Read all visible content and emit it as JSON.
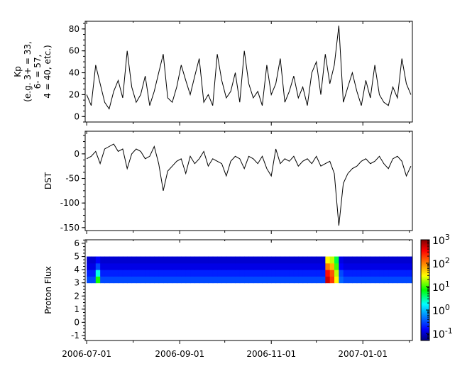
{
  "chart_data": [
    {
      "type": "line",
      "ylabel_lines": [
        "Kp",
        "(e.g. 3+ = 33,",
        "6- = 57,",
        "4 = 40, etc.)"
      ],
      "ylim": [
        -5,
        87
      ],
      "yticks": [
        "0",
        "20",
        "40",
        "60",
        "80"
      ],
      "ytick_values": [
        0,
        20,
        40,
        60,
        80
      ],
      "series": [
        {
          "values": [
            20,
            10,
            47,
            30,
            13,
            7,
            23,
            33,
            17,
            60,
            27,
            13,
            20,
            37,
            10,
            23,
            40,
            57,
            17,
            13,
            27,
            47,
            33,
            20,
            37,
            53,
            13,
            20,
            10,
            57,
            33,
            17,
            23,
            40,
            13,
            60,
            30,
            17,
            23,
            10,
            47,
            20,
            30,
            53,
            13,
            23,
            37,
            17,
            27,
            10,
            40,
            50,
            20,
            57,
            30,
            47,
            83,
            13,
            27,
            40,
            23,
            10,
            33,
            17,
            47,
            20,
            13,
            10,
            27,
            17,
            53,
            30,
            20
          ]
        }
      ]
    },
    {
      "type": "line",
      "ylabel": "DST",
      "ylim": [
        -156,
        46
      ],
      "yticks": [
        "0",
        "-50",
        "-100",
        "-150"
      ],
      "ytick_values": [
        0,
        -50,
        -100,
        -150
      ],
      "series": [
        {
          "values": [
            -10,
            -5,
            5,
            -20,
            10,
            15,
            20,
            5,
            10,
            -30,
            0,
            10,
            5,
            -10,
            -5,
            15,
            -20,
            -75,
            -35,
            -25,
            -15,
            -10,
            -40,
            -5,
            -20,
            -10,
            5,
            -25,
            -10,
            -15,
            -20,
            -45,
            -15,
            -5,
            -10,
            -30,
            -5,
            -10,
            -20,
            -5,
            -30,
            -45,
            10,
            -20,
            -10,
            -15,
            -5,
            -25,
            -15,
            -10,
            -20,
            -5,
            -25,
            -20,
            -15,
            -40,
            -146,
            -60,
            -40,
            -30,
            -25,
            -15,
            -10,
            -20,
            -15,
            -5,
            -20,
            -30,
            -10,
            -5,
            -15,
            -45,
            -25
          ]
        }
      ]
    },
    {
      "type": "heatmap",
      "ylabel": "Proton Flux",
      "ylim": [
        -1.38,
        6.27
      ],
      "yticks": [
        "-1",
        "0",
        "1",
        "2",
        "3",
        "4",
        "5",
        "6"
      ],
      "ytick_values": [
        -1,
        0,
        1,
        2,
        3,
        4,
        5,
        6
      ],
      "y_bins": [
        3.0,
        3.5,
        4.0,
        4.5
      ],
      "y_bin_width": 0.5,
      "colorscale": "jet",
      "color_scale": "log",
      "clim": [
        0.05,
        1000
      ],
      "colorbar_ticks": [
        {
          "base": "10",
          "exp": "3",
          "value": 1000
        },
        {
          "base": "10",
          "exp": "2",
          "value": 100
        },
        {
          "base": "10",
          "exp": "1",
          "value": 10
        },
        {
          "base": "10",
          "exp": "0",
          "value": 1
        },
        {
          "base": "10",
          "exp": "-1",
          "value": 0.1
        }
      ],
      "z": [
        [
          0.3,
          0.3,
          8,
          0.3,
          0.3,
          0.3,
          0.3,
          0.3,
          0.3,
          0.3,
          0.3,
          0.3,
          0.3,
          0.3,
          0.3,
          0.3,
          0.3,
          0.3,
          0.3,
          0.3,
          0.3,
          0.3,
          0.3,
          0.3,
          0.3,
          0.3,
          0.3,
          0.3,
          0.3,
          0.3,
          0.3,
          0.3,
          0.3,
          0.3,
          0.3,
          0.3,
          0.3,
          0.3,
          0.3,
          0.3,
          0.3,
          0.3,
          0.3,
          0.3,
          0.3,
          0.3,
          0.3,
          0.3,
          0.3,
          0.3,
          0.3,
          0.3,
          0.3,
          500,
          200,
          30,
          0.4,
          0.3,
          0.3,
          0.3,
          0.3,
          0.3,
          0.3,
          0.3,
          0.3,
          0.3,
          0.3,
          0.3,
          0.3,
          0.3,
          0.3,
          0.3,
          0.3
        ],
        [
          0.2,
          0.2,
          2,
          0.2,
          0.2,
          0.2,
          0.2,
          0.2,
          0.2,
          0.2,
          0.2,
          0.2,
          0.2,
          0.2,
          0.2,
          0.2,
          0.2,
          0.2,
          0.2,
          0.2,
          0.2,
          0.2,
          0.2,
          0.2,
          0.2,
          0.2,
          0.2,
          0.2,
          0.2,
          0.2,
          0.2,
          0.2,
          0.2,
          0.2,
          0.2,
          0.2,
          0.2,
          0.2,
          0.2,
          0.2,
          0.2,
          0.2,
          0.2,
          0.2,
          0.2,
          0.2,
          0.2,
          0.2,
          0.2,
          0.2,
          0.2,
          0.2,
          0.2,
          300,
          150,
          20,
          0.3,
          0.2,
          0.2,
          0.2,
          0.2,
          0.2,
          0.2,
          0.2,
          0.2,
          0.2,
          0.2,
          0.2,
          0.2,
          0.2,
          0.2,
          0.2,
          0.2
        ],
        [
          0.12,
          0.12,
          0.3,
          0.12,
          0.12,
          0.12,
          0.12,
          0.12,
          0.12,
          0.12,
          0.12,
          0.12,
          0.12,
          0.12,
          0.12,
          0.12,
          0.12,
          0.12,
          0.12,
          0.12,
          0.12,
          0.12,
          0.12,
          0.12,
          0.12,
          0.12,
          0.12,
          0.12,
          0.12,
          0.12,
          0.12,
          0.12,
          0.12,
          0.12,
          0.12,
          0.12,
          0.12,
          0.12,
          0.12,
          0.12,
          0.12,
          0.12,
          0.12,
          0.12,
          0.12,
          0.12,
          0.12,
          0.12,
          0.12,
          0.12,
          0.12,
          0.12,
          0.12,
          100,
          60,
          10,
          0.15,
          0.12,
          0.12,
          0.12,
          0.12,
          0.12,
          0.12,
          0.12,
          0.12,
          0.12,
          0.12,
          0.12,
          0.12,
          0.12,
          0.12,
          0.12,
          0.12
        ],
        [
          0.1,
          0.1,
          0.15,
          0.1,
          0.1,
          0.1,
          0.1,
          0.1,
          0.1,
          0.1,
          0.1,
          0.1,
          0.1,
          0.1,
          0.1,
          0.1,
          0.1,
          0.1,
          0.1,
          0.1,
          0.1,
          0.1,
          0.1,
          0.1,
          0.1,
          0.1,
          0.1,
          0.1,
          0.1,
          0.1,
          0.1,
          0.1,
          0.1,
          0.1,
          0.1,
          0.1,
          0.1,
          0.1,
          0.1,
          0.1,
          0.1,
          0.1,
          0.1,
          0.1,
          0.1,
          0.1,
          0.1,
          0.1,
          0.1,
          0.1,
          0.1,
          0.1,
          0.1,
          30,
          20,
          5,
          0.12,
          0.1,
          0.1,
          0.1,
          0.1,
          0.1,
          0.1,
          0.1,
          0.1,
          0.1,
          0.1,
          0.1,
          0.1,
          0.1,
          0.1,
          0.1,
          0.1
        ]
      ]
    }
  ],
  "x": [
    "2006-07-01",
    "2006-07-04",
    "2006-07-07",
    "2006-07-10",
    "2006-07-13",
    "2006-07-16",
    "2006-07-19",
    "2006-07-22",
    "2006-07-25",
    "2006-07-28",
    "2006-07-31",
    "2006-08-03",
    "2006-08-06",
    "2006-08-09",
    "2006-08-12",
    "2006-08-15",
    "2006-08-18",
    "2006-08-21",
    "2006-08-24",
    "2006-08-27",
    "2006-08-30",
    "2006-09-02",
    "2006-09-05",
    "2006-09-08",
    "2006-09-11",
    "2006-09-14",
    "2006-09-17",
    "2006-09-20",
    "2006-09-23",
    "2006-09-26",
    "2006-09-29",
    "2006-10-02",
    "2006-10-05",
    "2006-10-08",
    "2006-10-11",
    "2006-10-14",
    "2006-10-17",
    "2006-10-20",
    "2006-10-23",
    "2006-10-26",
    "2006-10-29",
    "2006-11-01",
    "2006-11-04",
    "2006-11-07",
    "2006-11-10",
    "2006-11-13",
    "2006-11-16",
    "2006-11-19",
    "2006-11-22",
    "2006-11-25",
    "2006-11-28",
    "2006-12-01",
    "2006-12-04",
    "2006-12-07",
    "2006-12-10",
    "2006-12-13",
    "2006-12-16",
    "2006-12-19",
    "2006-12-22",
    "2006-12-25",
    "2006-12-28",
    "2006-12-31",
    "2007-01-03",
    "2007-01-06",
    "2007-01-09",
    "2007-01-12",
    "2007-01-15",
    "2007-01-18",
    "2007-01-21",
    "2007-01-24",
    "2007-01-27",
    "2007-01-30",
    "2007-02-02"
  ],
  "xaxis": {
    "range": [
      "2006-06-30",
      "2007-02-03"
    ],
    "major_ticks": [
      "2006-07-01",
      "2006-09-01",
      "2006-11-01",
      "2007-01-01"
    ],
    "minor_ticks": [
      "2006-08-01",
      "2006-10-01",
      "2006-12-01",
      "2007-02-01"
    ]
  },
  "colors": {
    "line": "#000000",
    "axis": "#000000"
  }
}
